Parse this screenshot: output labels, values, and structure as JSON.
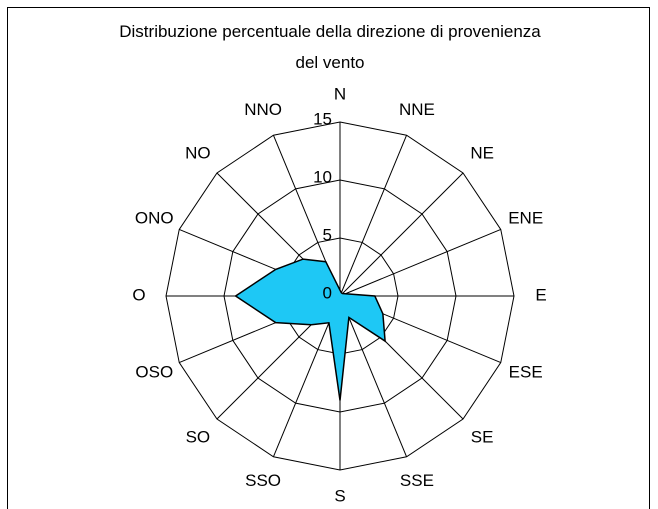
{
  "chart_data": {
    "type": "radar",
    "title": "Distribuzione percentuale della direzione di provenienza del vento",
    "categories": [
      "N",
      "NNE",
      "NE",
      "ENE",
      "E",
      "ESE",
      "SE",
      "SSE",
      "S",
      "SSO",
      "SO",
      "OSO",
      "O",
      "ONO",
      "NO",
      "NNO"
    ],
    "series": [
      {
        "color": "#1ec8f5",
        "values": [
          0.5,
          0.3,
          0.3,
          0.5,
          3,
          4,
          5.5,
          2,
          9,
          2.5,
          3.5,
          6,
          9,
          6,
          4.5,
          3.2
        ]
      }
    ],
    "ylim": [
      0,
      15
    ],
    "yticks": [
      0,
      5,
      10,
      15
    ],
    "grid": true
  }
}
